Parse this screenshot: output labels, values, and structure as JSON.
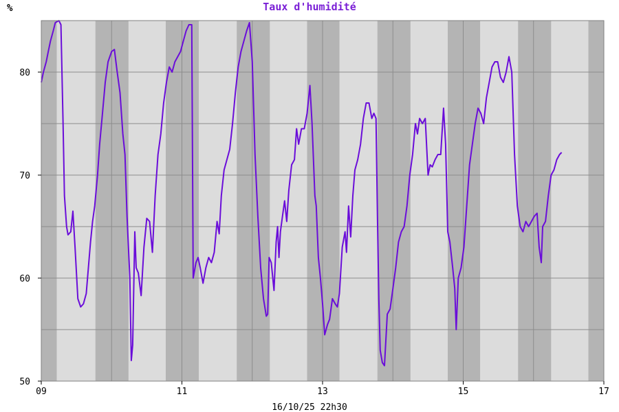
{
  "chart_data": {
    "type": "line",
    "title": "Taux d'humidité",
    "ylabel": "%",
    "footer": "16/10/25 22h30",
    "ylim": [
      50,
      85
    ],
    "xlim": [
      9,
      17
    ],
    "y_ticks": [
      50,
      60,
      70,
      80
    ],
    "x_ticks": [
      "09",
      "11",
      "13",
      "15",
      "17"
    ],
    "grid": true,
    "colors": {
      "line": "#6a0dd9",
      "title": "#7a1fd6",
      "night_band": "#b4b4b4",
      "day_band": "#dcdcdc"
    },
    "night_bands": [
      [
        9.0,
        9.22
      ],
      [
        9.77,
        10.24
      ],
      [
        10.77,
        11.24
      ],
      [
        11.78,
        12.25
      ],
      [
        12.78,
        13.24
      ],
      [
        13.78,
        14.25
      ],
      [
        14.78,
        15.24
      ],
      [
        15.78,
        16.25
      ],
      [
        16.78,
        17.0
      ]
    ],
    "series": [
      {
        "values": [
          [
            9.0,
            79.0
          ],
          [
            9.03,
            80.0
          ],
          [
            9.07,
            81.0
          ],
          [
            9.1,
            82.0
          ],
          [
            9.13,
            83.0
          ],
          [
            9.17,
            84.0
          ],
          [
            9.2,
            84.8
          ],
          [
            9.25,
            85.0
          ],
          [
            9.28,
            84.6
          ],
          [
            9.31,
            75.0
          ],
          [
            9.33,
            68.0
          ],
          [
            9.36,
            65.0
          ],
          [
            9.38,
            64.2
          ],
          [
            9.42,
            64.5
          ],
          [
            9.45,
            66.5
          ],
          [
            9.48,
            63.0
          ],
          [
            9.52,
            58.0
          ],
          [
            9.56,
            57.2
          ],
          [
            9.6,
            57.5
          ],
          [
            9.64,
            58.5
          ],
          [
            9.67,
            61.0
          ],
          [
            9.7,
            63.5
          ],
          [
            9.73,
            65.5
          ],
          [
            9.76,
            67.0
          ],
          [
            9.8,
            70.0
          ],
          [
            9.83,
            73.0
          ],
          [
            9.87,
            76.0
          ],
          [
            9.91,
            79.0
          ],
          [
            9.95,
            81.0
          ],
          [
            10.0,
            82.0
          ],
          [
            10.04,
            82.2
          ],
          [
            10.08,
            80.0
          ],
          [
            10.12,
            78.0
          ],
          [
            10.16,
            74.0
          ],
          [
            10.19,
            72.0
          ],
          [
            10.22,
            66.0
          ],
          [
            10.26,
            60.0
          ],
          [
            10.28,
            52.0
          ],
          [
            10.3,
            53.5
          ],
          [
            10.33,
            64.5
          ],
          [
            10.35,
            61.0
          ],
          [
            10.38,
            60.5
          ],
          [
            10.42,
            58.3
          ],
          [
            10.46,
            63.0
          ],
          [
            10.5,
            65.8
          ],
          [
            10.54,
            65.5
          ],
          [
            10.58,
            62.5
          ],
          [
            10.62,
            68.0
          ],
          [
            10.66,
            72.0
          ],
          [
            10.7,
            74.0
          ],
          [
            10.74,
            77.0
          ],
          [
            10.78,
            79.0
          ],
          [
            10.82,
            80.5
          ],
          [
            10.86,
            80.0
          ],
          [
            10.9,
            81.0
          ],
          [
            10.94,
            81.5
          ],
          [
            10.98,
            82.0
          ],
          [
            11.02,
            83.0
          ],
          [
            11.06,
            84.0
          ],
          [
            11.1,
            84.6
          ],
          [
            11.14,
            84.6
          ],
          [
            11.16,
            60.0
          ],
          [
            11.2,
            61.5
          ],
          [
            11.23,
            62.0
          ],
          [
            11.26,
            61.0
          ],
          [
            11.3,
            59.5
          ],
          [
            11.34,
            61.0
          ],
          [
            11.38,
            62.0
          ],
          [
            11.42,
            61.5
          ],
          [
            11.46,
            62.5
          ],
          [
            11.5,
            65.5
          ],
          [
            11.53,
            64.3
          ],
          [
            11.56,
            68.0
          ],
          [
            11.6,
            70.5
          ],
          [
            11.64,
            71.5
          ],
          [
            11.68,
            72.5
          ],
          [
            11.72,
            75.0
          ],
          [
            11.76,
            78.0
          ],
          [
            11.8,
            80.5
          ],
          [
            11.84,
            82.0
          ],
          [
            11.88,
            83.0
          ],
          [
            11.92,
            84.0
          ],
          [
            11.96,
            84.8
          ],
          [
            12.0,
            81.0
          ],
          [
            12.04,
            72.0
          ],
          [
            12.08,
            66.0
          ],
          [
            12.12,
            61.0
          ],
          [
            12.16,
            58.0
          ],
          [
            12.2,
            56.3
          ],
          [
            12.22,
            56.5
          ],
          [
            12.24,
            62.0
          ],
          [
            12.27,
            61.5
          ],
          [
            12.31,
            58.8
          ],
          [
            12.34,
            63.5
          ],
          [
            12.36,
            65.0
          ],
          [
            12.38,
            62.0
          ],
          [
            12.4,
            64.5
          ],
          [
            12.43,
            66.0
          ],
          [
            12.46,
            67.5
          ],
          [
            12.49,
            65.5
          ],
          [
            12.52,
            68.5
          ],
          [
            12.56,
            71.0
          ],
          [
            12.6,
            71.5
          ],
          [
            12.63,
            74.5
          ],
          [
            12.66,
            73.0
          ],
          [
            12.7,
            74.5
          ],
          [
            12.74,
            74.5
          ],
          [
            12.78,
            76.0
          ],
          [
            12.82,
            78.7
          ],
          [
            12.85,
            75.0
          ],
          [
            12.89,
            68.0
          ],
          [
            12.91,
            67.0
          ],
          [
            12.94,
            62.0
          ],
          [
            12.97,
            60.0
          ],
          [
            13.0,
            57.5
          ],
          [
            13.03,
            54.5
          ],
          [
            13.07,
            55.5
          ],
          [
            13.1,
            56.0
          ],
          [
            13.14,
            58.0
          ],
          [
            13.18,
            57.5
          ],
          [
            13.21,
            57.2
          ],
          [
            13.24,
            58.5
          ],
          [
            13.28,
            63.0
          ],
          [
            13.32,
            64.5
          ],
          [
            13.34,
            62.5
          ],
          [
            13.37,
            67.0
          ],
          [
            13.4,
            64.0
          ],
          [
            13.43,
            68.0
          ],
          [
            13.46,
            70.5
          ],
          [
            13.5,
            71.5
          ],
          [
            13.54,
            73.0
          ],
          [
            13.58,
            75.5
          ],
          [
            13.62,
            77.0
          ],
          [
            13.66,
            77.0
          ],
          [
            13.7,
            75.5
          ],
          [
            13.73,
            76.0
          ],
          [
            13.76,
            75.5
          ],
          [
            13.78,
            66.0
          ],
          [
            13.8,
            58.0
          ],
          [
            13.82,
            53.0
          ],
          [
            13.85,
            51.8
          ],
          [
            13.88,
            51.5
          ],
          [
            13.92,
            56.5
          ],
          [
            13.96,
            57.0
          ],
          [
            14.0,
            59.0
          ],
          [
            14.04,
            61.0
          ],
          [
            14.08,
            63.5
          ],
          [
            14.12,
            64.5
          ],
          [
            14.16,
            65.0
          ],
          [
            14.2,
            67.0
          ],
          [
            14.24,
            70.0
          ],
          [
            14.28,
            72.0
          ],
          [
            14.32,
            75.0
          ],
          [
            14.35,
            74.0
          ],
          [
            14.38,
            75.5
          ],
          [
            14.42,
            75.0
          ],
          [
            14.46,
            75.5
          ],
          [
            14.5,
            70.0
          ],
          [
            14.53,
            71.0
          ],
          [
            14.56,
            70.8
          ],
          [
            14.6,
            71.5
          ],
          [
            14.64,
            72.0
          ],
          [
            14.68,
            72.0
          ],
          [
            14.72,
            76.5
          ],
          [
            14.75,
            73.0
          ],
          [
            14.78,
            64.5
          ],
          [
            14.81,
            63.5
          ],
          [
            14.85,
            61.0
          ],
          [
            14.88,
            59.0
          ],
          [
            14.9,
            55.0
          ],
          [
            14.93,
            60.0
          ],
          [
            14.97,
            61.0
          ],
          [
            15.01,
            63.0
          ],
          [
            15.05,
            67.0
          ],
          [
            15.09,
            71.0
          ],
          [
            15.13,
            73.0
          ],
          [
            15.17,
            75.0
          ],
          [
            15.21,
            76.5
          ],
          [
            15.25,
            76.0
          ],
          [
            15.29,
            75.0
          ],
          [
            15.33,
            77.5
          ],
          [
            15.37,
            79.0
          ],
          [
            15.41,
            80.5
          ],
          [
            15.45,
            81.0
          ],
          [
            15.49,
            81.0
          ],
          [
            15.53,
            79.5
          ],
          [
            15.57,
            79.0
          ],
          [
            15.61,
            80.0
          ],
          [
            15.65,
            81.5
          ],
          [
            15.69,
            80.0
          ],
          [
            15.73,
            72.0
          ],
          [
            15.77,
            67.0
          ],
          [
            15.81,
            65.0
          ],
          [
            15.85,
            64.5
          ],
          [
            15.89,
            65.5
          ],
          [
            15.93,
            65.0
          ],
          [
            15.97,
            65.5
          ],
          [
            16.01,
            66.0
          ],
          [
            16.05,
            66.3
          ],
          [
            16.08,
            63.0
          ],
          [
            16.11,
            61.5
          ],
          [
            16.13,
            65.0
          ],
          [
            16.17,
            65.5
          ],
          [
            16.21,
            68.0
          ],
          [
            16.25,
            70.0
          ],
          [
            16.29,
            70.5
          ],
          [
            16.33,
            71.5
          ],
          [
            16.37,
            72.0
          ],
          [
            16.4,
            72.2
          ]
        ]
      }
    ]
  }
}
